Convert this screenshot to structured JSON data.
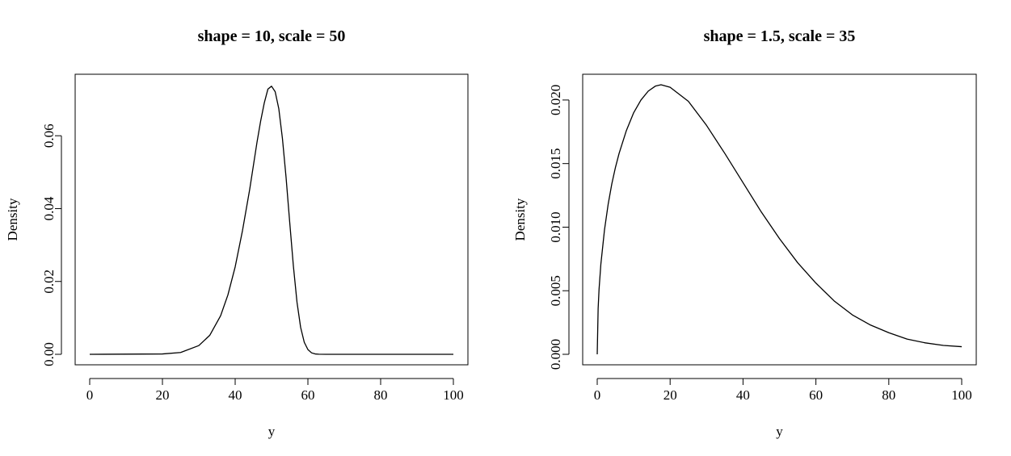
{
  "chart_data": [
    {
      "type": "line",
      "title": "shape = 10, scale = 50",
      "xlabel": "y",
      "ylabel": "Density",
      "xlim": [
        0,
        100
      ],
      "ylim": [
        0,
        0.074
      ],
      "xticks": [
        0,
        20,
        40,
        60,
        80,
        100
      ],
      "yticks": [
        0,
        0.02,
        0.04,
        0.06
      ],
      "xtick_labels": [
        "0",
        "20",
        "40",
        "60",
        "80",
        "100"
      ],
      "ytick_labels": [
        "0.00",
        "0.02",
        "0.04",
        "0.06"
      ],
      "grid": false,
      "line_color": "#000000",
      "series": [
        {
          "x": [
            0,
            20,
            25,
            30,
            33,
            36,
            38,
            40,
            42,
            44,
            46,
            47,
            48,
            49,
            50,
            51,
            52,
            53,
            54,
            55,
            56,
            57,
            58,
            59,
            60,
            61,
            62,
            63,
            65,
            70,
            80,
            100
          ],
          "y": [
            0,
            0.0001,
            0.0005,
            0.0024,
            0.0052,
            0.0106,
            0.0163,
            0.024,
            0.0339,
            0.0453,
            0.0582,
            0.064,
            0.069,
            0.0728,
            0.0736,
            0.0721,
            0.0674,
            0.0592,
            0.0485,
            0.0362,
            0.0243,
            0.0143,
            0.0074,
            0.0033,
            0.0013,
            0.0004,
            0.0001,
            3e-05,
            0,
            0,
            0,
            0
          ]
        }
      ]
    },
    {
      "type": "line",
      "title": "shape = 1.5, scale = 35",
      "xlabel": "y",
      "ylabel": "Density",
      "xlim": [
        0,
        100
      ],
      "ylim": [
        0,
        0.0212
      ],
      "xticks": [
        0,
        20,
        40,
        60,
        80,
        100
      ],
      "yticks": [
        0,
        0.005,
        0.01,
        0.015,
        0.02
      ],
      "xtick_labels": [
        "0",
        "20",
        "40",
        "60",
        "80",
        "100"
      ],
      "ytick_labels": [
        "0.000",
        "0.005",
        "0.010",
        "0.015",
        "0.020"
      ],
      "grid": false,
      "line_color": "#000000",
      "series": [
        {
          "x": [
            0,
            0.25,
            0.5,
            1,
            2,
            3,
            4,
            5,
            6,
            8,
            10,
            12,
            14,
            16,
            17.5,
            20,
            25,
            30,
            35,
            40,
            45,
            50,
            55,
            60,
            65,
            70,
            75,
            80,
            85,
            90,
            95,
            100
          ],
          "y": [
            0,
            0.0036,
            0.0051,
            0.0071,
            0.0098,
            0.0118,
            0.0134,
            0.0147,
            0.0158,
            0.0176,
            0.019,
            0.02,
            0.0207,
            0.0211,
            0.0212,
            0.021,
            0.0199,
            0.018,
            0.0158,
            0.0135,
            0.0112,
            0.0091,
            0.0072,
            0.0056,
            0.0042,
            0.0031,
            0.0023,
            0.0017,
            0.0012,
            0.0009,
            0.0007,
            0.0006
          ]
        }
      ]
    }
  ]
}
